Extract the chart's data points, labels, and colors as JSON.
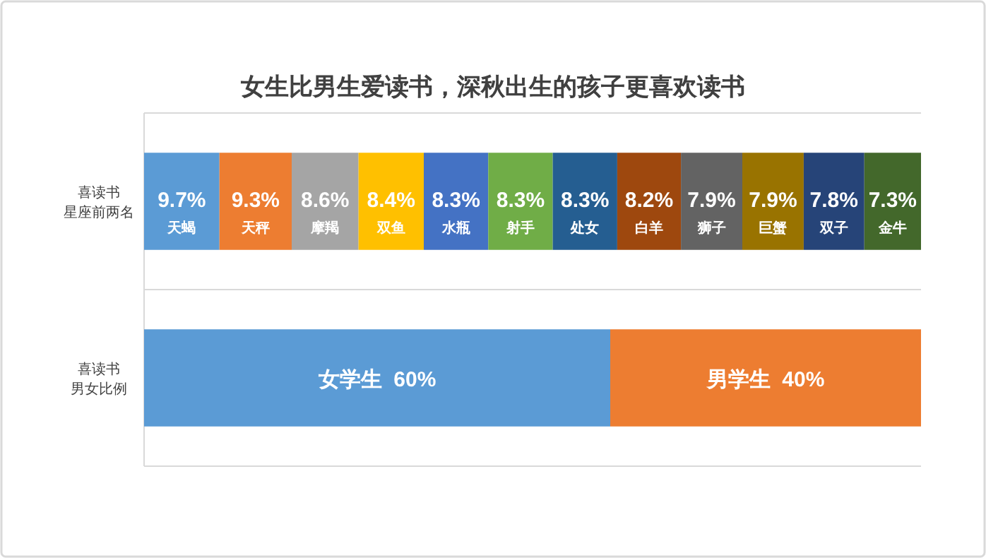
{
  "chart_data": {
    "type": "bar",
    "orientation": "horizontal",
    "stacked": true,
    "title": "女生比男生爱读书，深秋出生的孩子更喜欢读书",
    "categories": [
      "喜读书星座前两名",
      "喜读书男女比例"
    ],
    "xlim": [
      0,
      100
    ],
    "tick_labels": "y",
    "grid": "y",
    "series": [
      {
        "name": "天蝎",
        "color": "#5b9bd5",
        "values": [
          9.7,
          null
        ],
        "value_labels": [
          "9.7%",
          null
        ]
      },
      {
        "name": "天秤",
        "color": "#ed7d31",
        "values": [
          9.3,
          null
        ],
        "value_labels": [
          "9.3%",
          null
        ]
      },
      {
        "name": "摩羯",
        "color": "#a5a5a5",
        "values": [
          8.6,
          null
        ],
        "value_labels": [
          "8.6%",
          null
        ]
      },
      {
        "name": "双鱼",
        "color": "#ffc000",
        "values": [
          8.4,
          null
        ],
        "value_labels": [
          "8.4%",
          null
        ]
      },
      {
        "name": "水瓶",
        "color": "#4472c4",
        "values": [
          8.3,
          null
        ],
        "value_labels": [
          "8.3%",
          null
        ]
      },
      {
        "name": "射手",
        "color": "#70ad47",
        "values": [
          8.3,
          null
        ],
        "value_labels": [
          "8.3%",
          null
        ]
      },
      {
        "name": "处女",
        "color": "#255e91",
        "values": [
          8.3,
          null
        ],
        "value_labels": [
          "8.3%",
          null
        ]
      },
      {
        "name": "白羊",
        "color": "#9e480e",
        "values": [
          8.2,
          null
        ],
        "value_labels": [
          "8.2%",
          null
        ]
      },
      {
        "name": "狮子",
        "color": "#636363",
        "values": [
          7.9,
          null
        ],
        "value_labels": [
          "7.9%",
          null
        ]
      },
      {
        "name": "巨蟹",
        "color": "#997300",
        "values": [
          7.9,
          null
        ],
        "value_labels": [
          "7.9%",
          null
        ]
      },
      {
        "name": "双子",
        "color": "#264478",
        "values": [
          7.8,
          null
        ],
        "value_labels": [
          "7.8%",
          null
        ]
      },
      {
        "name": "金牛",
        "color": "#43682b",
        "values": [
          7.3,
          null
        ],
        "value_labels": [
          "7.3%",
          null
        ]
      },
      {
        "name": "女学生",
        "color": "#5b9bd5",
        "values": [
          null,
          60
        ],
        "value_labels": [
          null,
          "60%"
        ]
      },
      {
        "name": "男学生",
        "color": "#ed7d31",
        "values": [
          null,
          40
        ],
        "value_labels": [
          null,
          "40%"
        ]
      }
    ]
  }
}
